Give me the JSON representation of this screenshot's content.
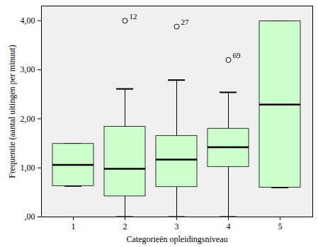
{
  "chart_data": {
    "type": "box",
    "x_label": "Categorieën opleidingsniveau",
    "y_label": "Frequentie (aantal uitingen per minuut)",
    "categories": [
      "1",
      "2",
      "3",
      "4",
      "5"
    ],
    "boxes": [
      {
        "min": 0.63,
        "q1": 0.63,
        "median": 1.06,
        "q3": 1.49,
        "max": 1.49
      },
      {
        "min": 0.0,
        "q1": 0.42,
        "median": 0.98,
        "q3": 1.84,
        "max": 2.61
      },
      {
        "min": 0.0,
        "q1": 0.61,
        "median": 1.17,
        "q3": 1.65,
        "max": 2.79
      },
      {
        "min": 0.0,
        "q1": 1.02,
        "median": 1.42,
        "q3": 1.8,
        "max": 2.54
      },
      {
        "min": 0.6,
        "q1": 0.6,
        "median": 2.29,
        "q3": 3.99,
        "max": 3.99
      }
    ],
    "outliers": [
      {
        "category": "2",
        "value": 4.0,
        "label": "12"
      },
      {
        "category": "3",
        "value": 3.88,
        "label": "27"
      },
      {
        "category": "4",
        "value": 3.2,
        "label": "69"
      }
    ],
    "color": "#ccffcc",
    "ylim": [
      0,
      4.3
    ],
    "yticks": [
      {
        "value": 0,
        "label": ",00"
      },
      {
        "value": 1,
        "label": "1,00"
      },
      {
        "value": 2,
        "label": "2,00"
      },
      {
        "value": 3,
        "label": "3,00"
      },
      {
        "value": 4,
        "label": "4,00"
      }
    ],
    "grid": false
  }
}
